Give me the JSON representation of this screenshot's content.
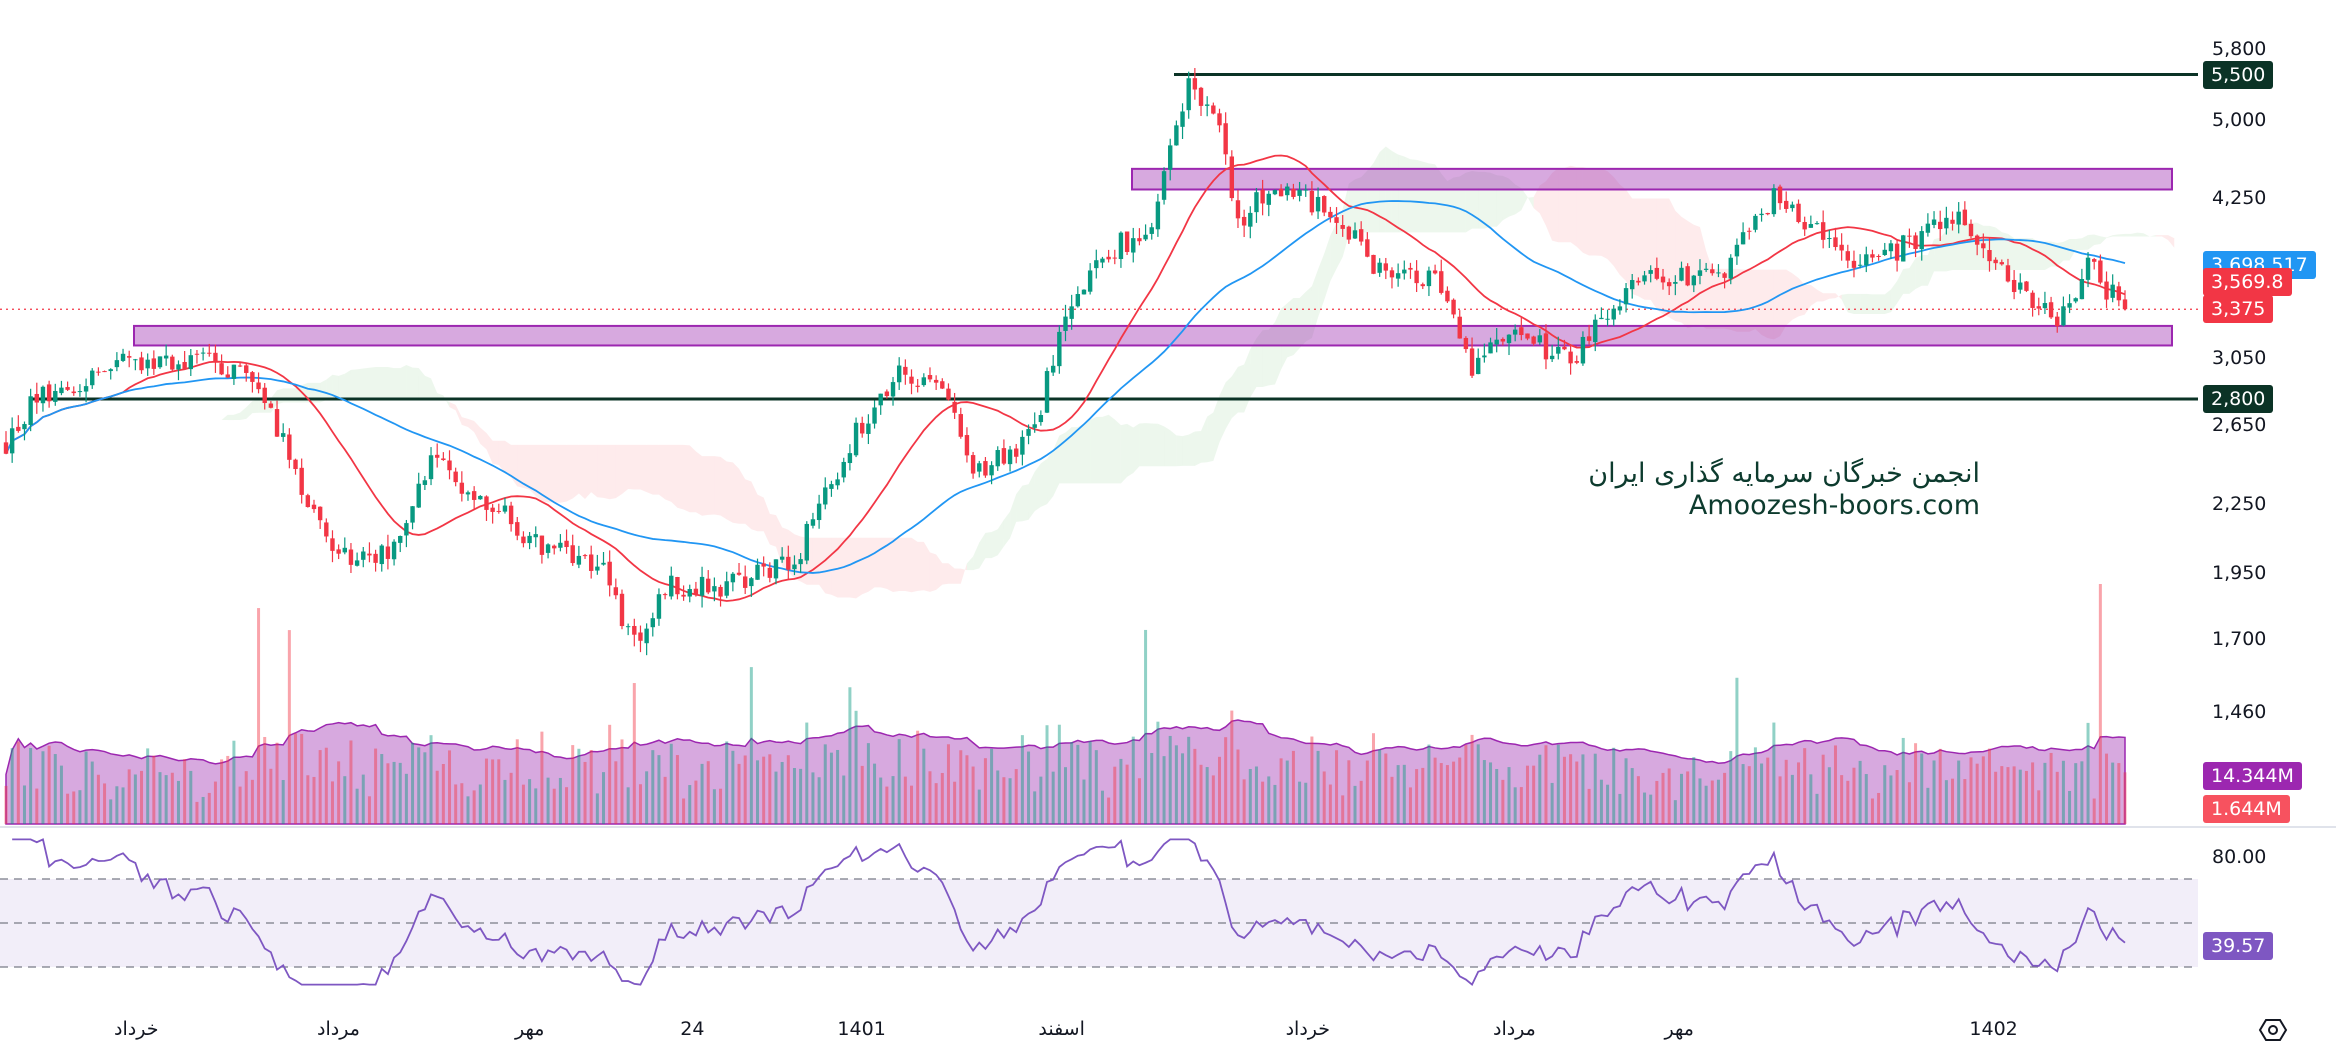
{
  "chart_data": {
    "type": "candlestick",
    "scale": "log",
    "ylim": [
      1460,
      5800
    ],
    "y_ticks": [
      "5,800",
      "5,000",
      "4,250",
      "3,050",
      "2,650",
      "2,250",
      "1,950",
      "1,700",
      "1,460"
    ],
    "y_tick_values": [
      5800,
      5000,
      4250,
      3050,
      2650,
      2250,
      1950,
      1700,
      1460
    ],
    "x_ticks": [
      "خرداد",
      "مرداد",
      "مهر",
      "24",
      "1401",
      "اسفند",
      "خرداد",
      "مرداد",
      "مهر",
      "1402"
    ],
    "x_tick_positions": [
      0.062,
      0.154,
      0.241,
      0.315,
      0.392,
      0.483,
      0.595,
      0.689,
      0.764,
      0.907
    ],
    "price_keypoints": {
      "t": [
        0,
        0.014,
        0.052,
        0.091,
        0.119,
        0.13,
        0.154,
        0.182,
        0.2,
        0.224,
        0.252,
        0.28,
        0.298,
        0.312,
        0.337,
        0.372,
        0.4,
        0.421,
        0.442,
        0.456,
        0.484,
        0.498,
        0.519,
        0.54,
        0.558,
        0.572,
        0.582,
        0.593,
        0.624,
        0.646,
        0.674,
        0.691,
        0.709,
        0.74,
        0.758,
        0.772,
        0.807,
        0.835,
        0.87,
        0.891,
        0.919,
        0.94,
        0.968,
        0.982,
        1.0
      ],
      "close": [
        2550,
        2800,
        3000,
        3050,
        2900,
        2600,
        2000,
        2050,
        2450,
        2300,
        2050,
        2000,
        1650,
        1900,
        1900,
        2000,
        2600,
        2950,
        2850,
        2400,
        2600,
        3200,
        3800,
        4000,
        5400,
        4900,
        4000,
        4300,
        4200,
        3700,
        3600,
        3000,
        3200,
        3050,
        3400,
        3600,
        3600,
        4300,
        3700,
        3800,
        4100,
        3700,
        3250,
        3700,
        3375
      ]
    },
    "horizontal_levels": [
      5500,
      2800
    ],
    "zones": [
      [
        4330,
        4520
      ],
      [
        3130,
        3260
      ]
    ],
    "last_price": 3375,
    "price_tags": [
      {
        "label": "5,500",
        "value": 5500,
        "color": "#0b3326"
      },
      {
        "label": "3,698.517",
        "value": 3698.517,
        "color": "#2196f3"
      },
      {
        "label": "3,569.8",
        "value": 3569.8,
        "color": "#f23645"
      },
      {
        "label": "3,375",
        "value": 3375,
        "color": "#f23645"
      },
      {
        "label": "2,800",
        "value": 2800,
        "color": "#0b3326"
      }
    ],
    "volume": {
      "ma_label": "14.344M",
      "last_label": "1.644M",
      "ma_color": "#9c27b0",
      "last_color": "#f7525f"
    },
    "rsi": {
      "top_tick": "80.00",
      "value_label": "39.57",
      "levels": [
        70,
        50,
        30
      ],
      "color": "#7e57c2"
    },
    "colors": {
      "up": "#089981",
      "down": "#f23645",
      "ma_fast": "#f23645",
      "ma_slow": "#2196f3"
    }
  },
  "watermark": {
    "line1": "انجمن خبرگان سرمایه گذاری ایران",
    "line2": "Amoozesh-boors.com"
  }
}
